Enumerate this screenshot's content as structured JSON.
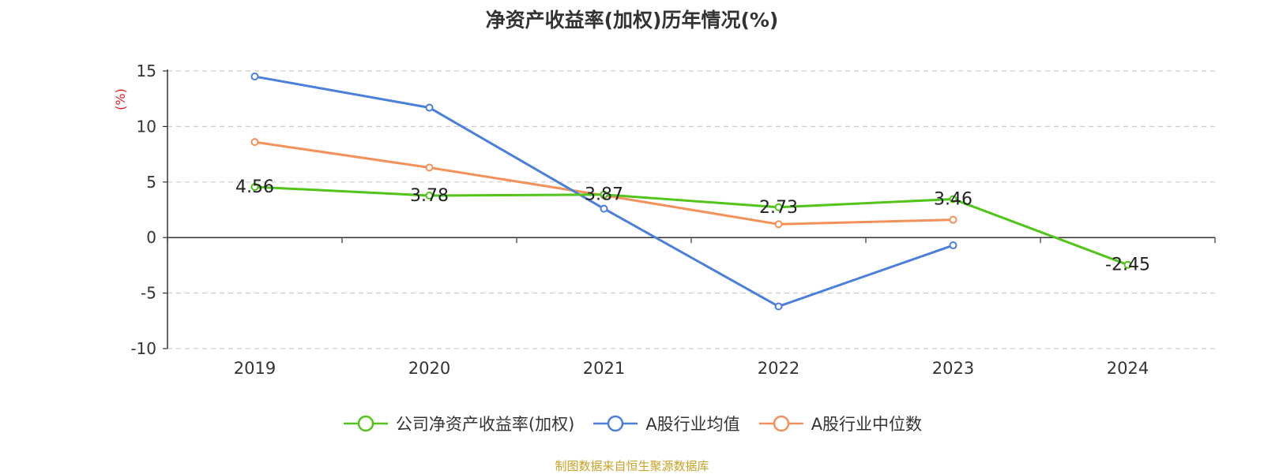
{
  "chart_data": {
    "type": "line",
    "title": "净资产收益率(加权)历年情况(%)",
    "xlabel": "",
    "ylabel": "(%)",
    "categories": [
      "2019",
      "2020",
      "2021",
      "2022",
      "2023",
      "2024"
    ],
    "ylim": [
      -10,
      15
    ],
    "yticks": [
      15,
      10,
      5,
      0,
      -5,
      -10
    ],
    "grid": true,
    "legend_position": "bottom",
    "series": [
      {
        "name": "公司净资产收益率(加权)",
        "color": "#52c41a",
        "values": [
          4.56,
          3.78,
          3.87,
          2.73,
          3.46,
          -2.45
        ],
        "labels": [
          "4.56",
          "3.78",
          "3.87",
          "2.73",
          "3.46",
          "-2.45"
        ]
      },
      {
        "name": "A股行业均值",
        "color": "#4a7fdc",
        "values": [
          14.5,
          11.7,
          2.6,
          -6.2,
          -0.7,
          null
        ]
      },
      {
        "name": "A股行业中位数",
        "color": "#f4915a",
        "values": [
          8.6,
          6.3,
          3.8,
          1.2,
          1.6,
          null
        ]
      }
    ]
  },
  "source": "制图数据来自恒生聚源数据库"
}
